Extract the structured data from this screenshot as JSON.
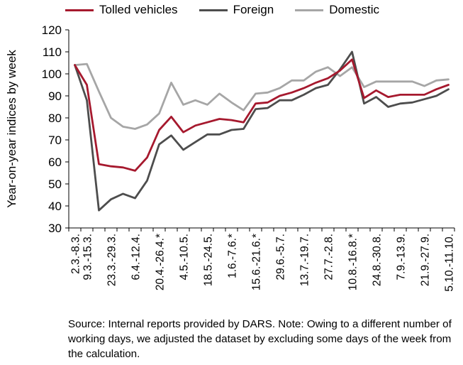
{
  "chart_data": {
    "type": "line",
    "ylabel": "Year-on-year indices by week",
    "xlabel": "",
    "ylim": [
      30,
      120
    ],
    "yticks": [
      30,
      40,
      50,
      60,
      70,
      80,
      90,
      100,
      110,
      120
    ],
    "grid": false,
    "legend_position": "top",
    "x": [
      "2.3.-8.3.",
      "9.3.-15.3.",
      "16.3.-22.3.",
      "23.3.-29.3.",
      "30.3.-5.4.",
      "6.4.-12.4.",
      "13.4.-19.4.",
      "20.4.-26.4.*",
      "27.4.-3.5.",
      "4.5.-10.5.",
      "11.5.-17.5.",
      "18.5.-24.5.",
      "25.5.-31.5.",
      "1.6.-7.6.*",
      "8.6.-14.6.",
      "15.6.-21.6.*",
      "22.6.-28.6.",
      "29.6.-5.7.",
      "6.7.-12.7.",
      "13.7.-19.7.",
      "20.7.-26.7.",
      "27.7.-2.8.",
      "3.8.-9.8.",
      "10.8.-16.8.*",
      "17.8.-23.8.",
      "24.8.-30.8.",
      "31.8.-6.9.",
      "7.9.-13.9.",
      "14.9.-20.9.",
      "21.9.-27.9.",
      "28.9.-4.10.",
      "5.10.-11.10."
    ],
    "xtick_labels": [
      "2.3.-8.3.",
      "9.3.-15.3.",
      "",
      "23.3.-29.3.",
      "",
      "6.4.-12.4.",
      "",
      "20.4.-26.4.*",
      "",
      "4.5.-10.5.",
      "",
      "18.5.-24.5.",
      "",
      "1.6.-7.6.*",
      "",
      "15.6.-21.6.*",
      "",
      "29.6.-5.7.",
      "",
      "13.7.-19.7.",
      "",
      "27.7.-2.8.",
      "",
      "10.8.-16.8.*",
      "",
      "24.8.-30.8.",
      "",
      "7.9.-13.9.",
      "",
      "21.9.-27.9.",
      "",
      "5.10.-11.10."
    ],
    "series": [
      {
        "name": "Tolled vehicles",
        "color": "#a6192e",
        "values": [
          104,
          95,
          59,
          58,
          57.5,
          56,
          62,
          74.5,
          80.5,
          73.5,
          76.5,
          78,
          79.5,
          79,
          78,
          86.5,
          87,
          90,
          91.5,
          93.5,
          96,
          98,
          101.5,
          106.5,
          89,
          92.5,
          89.5,
          90.5,
          90.5,
          90.5,
          93,
          95
        ]
      },
      {
        "name": "Foreign",
        "color": "#4d4d4d",
        "values": [
          104,
          88,
          38,
          43,
          45.5,
          43.5,
          51.5,
          68,
          72,
          65.5,
          69,
          72.5,
          72.5,
          74.5,
          75,
          84,
          84.5,
          88,
          88,
          90.5,
          93.5,
          95,
          102,
          110,
          86.5,
          89.5,
          85,
          86.5,
          87,
          88.5,
          90,
          93
        ]
      },
      {
        "name": "Domestic",
        "color": "#a6a6a6",
        "values": [
          104,
          104.5,
          92,
          80,
          76,
          75,
          77,
          82,
          96,
          86,
          88,
          86,
          91,
          87,
          83.5,
          91,
          91.5,
          93.5,
          97,
          97,
          101,
          103,
          99,
          103,
          94,
          96.5,
          96.5,
          96.5,
          96.5,
          94.5,
          97,
          97.5
        ]
      }
    ]
  },
  "note": "Source: Internal reports provided by DARS. Note: Owing to a different number of working days, we adjusted the dataset by excluding some days of the week from the calculation."
}
